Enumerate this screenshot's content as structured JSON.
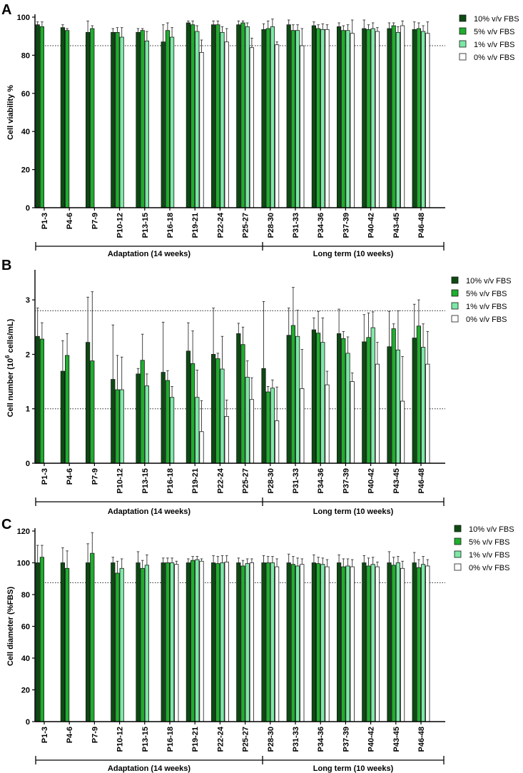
{
  "colors": {
    "fbs10": "#0c4a12",
    "fbs5": "#1fae2e",
    "fbs1": "#7de8a5",
    "fbs0": "#ffffff",
    "stroke": "#1a1a1a"
  },
  "chart_data": [
    {
      "type": "bar",
      "panel_label": "A",
      "title": "",
      "ylabel": "Cell viability %",
      "xlabel": "",
      "ylim": [
        0,
        100
      ],
      "yticks": [
        "0",
        "20",
        "40",
        "60",
        "80",
        "100"
      ],
      "reference_lines": [
        85
      ],
      "categories": [
        "P1-3",
        "P4-6",
        "P7-9",
        "P10-12",
        "P13-15",
        "P16-18",
        "P19-21",
        "P22-24",
        "P25-27",
        "P28-30",
        "P31-33",
        "P34-36",
        "P37-39",
        "P40-42",
        "P43-45",
        "P46-48"
      ],
      "series": [
        {
          "name": "10% v/v FBS",
          "values": [
            96,
            94.5,
            92,
            92,
            92,
            87,
            97,
            96,
            96,
            93.5,
            96,
            95.5,
            95,
            94,
            94,
            93.5
          ],
          "errors": [
            1.5,
            1.5,
            6,
            2,
            2,
            9,
            1,
            2,
            2,
            3,
            2.5,
            2,
            2,
            4.5,
            3,
            4
          ]
        },
        {
          "name": "5% v/v FBS",
          "values": [
            95,
            93,
            94,
            92,
            93,
            93,
            96,
            96,
            97,
            94,
            93,
            94,
            93,
            93.5,
            95.5,
            94
          ],
          "errors": [
            2.5,
            1,
            1.5,
            2.5,
            1,
            4,
            2,
            2,
            1,
            4,
            3,
            2,
            2.5,
            2.5,
            1.5,
            3
          ]
        },
        {
          "name": "1% v/v FBS",
          "values": [
            null,
            null,
            null,
            89.5,
            87.5,
            89.5,
            92.5,
            92,
            95,
            95,
            93,
            93.5,
            93,
            94,
            92,
            92.5
          ],
          "errors": [
            null,
            null,
            null,
            5,
            5,
            5,
            3,
            3,
            2,
            4,
            3,
            3,
            3,
            3,
            3,
            3
          ]
        },
        {
          "name": "0% v/v FBS",
          "values": [
            null,
            null,
            null,
            null,
            null,
            null,
            81.5,
            87,
            84,
            85.5,
            85,
            93.5,
            91.5,
            92.5,
            95.5,
            91.5
          ],
          "errors": [
            null,
            null,
            null,
            null,
            null,
            null,
            6.5,
            7,
            5,
            1.5,
            9,
            2.5,
            7,
            2,
            2.5,
            6
          ]
        }
      ],
      "groups": [
        {
          "label": "Adaptation (14 weeks)"
        },
        {
          "label": "Long term (10 weeks)"
        }
      ]
    },
    {
      "type": "bar",
      "panel_label": "B",
      "title": "",
      "ylabel": "Cell number (10⁶ cells/mL)",
      "ylabel_main": "Cell number (10",
      "ylabel_sup": "6",
      "ylabel_tail": " cells/mL)",
      "xlabel": "",
      "ylim": [
        0,
        3.5
      ],
      "yticks": [
        "0",
        "1",
        "2",
        "3"
      ],
      "reference_lines": [
        1,
        2.8
      ],
      "categories": [
        "P1-3",
        "P4-6",
        "P7-9",
        "P10-12",
        "P13-15",
        "P16-18",
        "P19-21",
        "P22-24",
        "P25-27",
        "P28-30",
        "P31-33",
        "P34-36",
        "P37-39",
        "P40-42",
        "P43-45",
        "P46-48"
      ],
      "series": [
        {
          "name": "10% v/v FBS",
          "values": [
            2.33,
            1.69,
            2.22,
            1.54,
            1.64,
            1.67,
            2.06,
            2.0,
            2.38,
            1.74,
            2.35,
            2.45,
            2.38,
            2.23,
            2.14,
            2.3
          ],
          "errors": [
            0.52,
            0.56,
            0.83,
            1.0,
            0.1,
            0.92,
            0.52,
            0.85,
            0.19,
            1.23,
            0.5,
            0.22,
            0.45,
            0.5,
            0.65,
            0.62
          ]
        },
        {
          "name": "5% v/v FBS",
          "values": [
            2.28,
            1.98,
            1.88,
            1.35,
            1.89,
            1.52,
            1.83,
            1.92,
            2.18,
            1.31,
            2.53,
            2.39,
            2.29,
            2.31,
            2.47,
            2.52
          ],
          "errors": [
            0.3,
            0.4,
            1.27,
            0.63,
            0.48,
            0.18,
            0.6,
            0.1,
            0.32,
            0.1,
            0.7,
            0.4,
            0.13,
            0.45,
            0.09,
            0.48
          ]
        },
        {
          "name": "1% v/v FBS",
          "values": [
            null,
            null,
            null,
            1.35,
            1.42,
            1.21,
            1.21,
            1.73,
            1.58,
            1.38,
            2.33,
            2.22,
            2.02,
            2.49,
            2.08,
            2.13
          ],
          "errors": [
            null,
            null,
            null,
            0.6,
            0.22,
            0.2,
            0.5,
            0.6,
            0.3,
            0.15,
            0.48,
            0.45,
            0.3,
            0.29,
            0.72,
            0.43
          ]
        },
        {
          "name": "0% v/v FBS",
          "values": [
            null,
            null,
            null,
            null,
            null,
            null,
            0.58,
            0.86,
            1.17,
            0.78,
            1.37,
            1.44,
            1.5,
            1.82,
            1.14,
            1.82
          ],
          "errors": [
            null,
            null,
            null,
            null,
            null,
            null,
            0.57,
            0.3,
            0.4,
            0.62,
            0.72,
            0.25,
            0.16,
            0.4,
            0.82,
            0.6
          ]
        }
      ],
      "groups": [
        {
          "label": "Adaptation (14 weeks)"
        },
        {
          "label": "Long term (10 weeks)"
        }
      ]
    },
    {
      "type": "bar",
      "panel_label": "C",
      "title": "",
      "ylabel": "Cell diameter  (%FBS)",
      "xlabel": "",
      "ylim": [
        0,
        120
      ],
      "yticks": [
        "0",
        "20",
        "40",
        "60",
        "80",
        "100",
        "120"
      ],
      "reference_lines": [
        87.5
      ],
      "categories": [
        "P1-3",
        "P4-6",
        "P7-9",
        "P10-12",
        "P13-15",
        "P16-18",
        "P19-21",
        "P22-24",
        "P25-27",
        "P28-30",
        "P31-33",
        "P34-36",
        "P37-39",
        "P40-42",
        "P43-45",
        "P46-48"
      ],
      "series": [
        {
          "name": "10% v/v FBS",
          "values": [
            100,
            100,
            100,
            100,
            100,
            100,
            100,
            100,
            100,
            100,
            100,
            100,
            100,
            100,
            100,
            100
          ],
          "errors": [
            11,
            9.5,
            12,
            3.5,
            7,
            3,
            2.5,
            4.5,
            3,
            4.5,
            5.5,
            5,
            5,
            4.5,
            7,
            6.5
          ]
        },
        {
          "name": "5% v/v FBS",
          "values": [
            103.5,
            96.5,
            106,
            93.5,
            96.5,
            100,
            101.5,
            99.5,
            98,
            100,
            99,
            99.5,
            97.5,
            98,
            98.5,
            97
          ],
          "errors": [
            7.5,
            11,
            13,
            7.5,
            5,
            3,
            2.5,
            4.5,
            3.5,
            4,
            5,
            4,
            5,
            5,
            5,
            5
          ]
        },
        {
          "name": "1% v/v FBS",
          "values": [
            null,
            null,
            null,
            96.5,
            98.5,
            100,
            102,
            100,
            99.5,
            100,
            98,
            99,
            98,
            99,
            100,
            99
          ],
          "errors": [
            null,
            null,
            null,
            6,
            6.5,
            3,
            2,
            4.5,
            3,
            4,
            5,
            4,
            4.5,
            4.5,
            4,
            5
          ]
        },
        {
          "name": "0% v/v FBS",
          "values": [
            null,
            null,
            null,
            null,
            null,
            99,
            101,
            100.5,
            100,
            97.5,
            99,
            97.5,
            97.5,
            97.5,
            96.5,
            98
          ],
          "errors": [
            null,
            null,
            null,
            null,
            null,
            2,
            1.5,
            4,
            2.5,
            5,
            3.5,
            4.5,
            4.5,
            3,
            4.5,
            4
          ]
        }
      ],
      "groups": [
        {
          "label": "Adaptation (14 weeks)"
        },
        {
          "label": "Long term (10 weeks)"
        }
      ]
    }
  ]
}
